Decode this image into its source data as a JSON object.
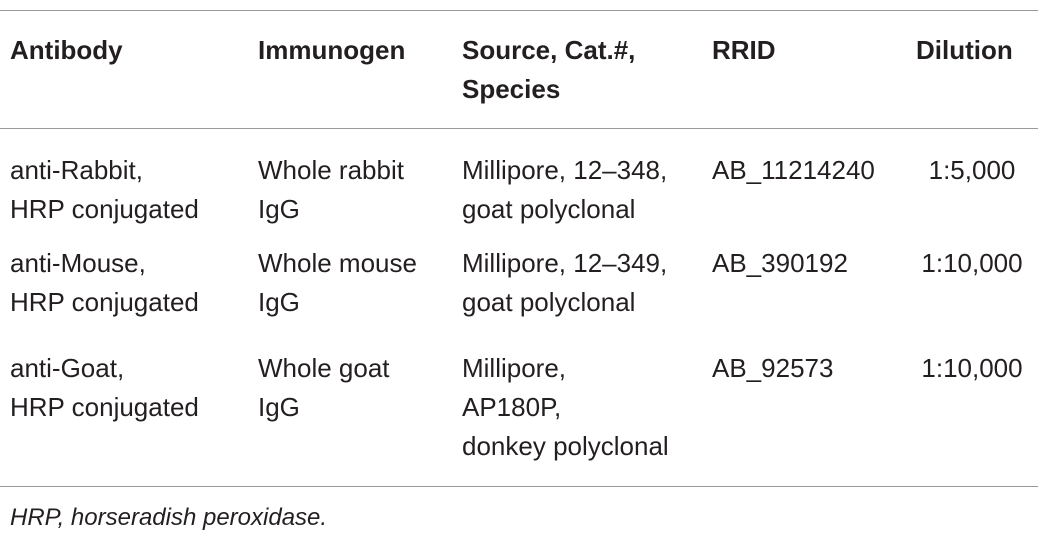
{
  "table": {
    "header": [
      [
        "Antibody"
      ],
      [
        "Immunogen"
      ],
      [
        "Source, Cat.#,",
        "Species"
      ],
      [
        "RRID"
      ],
      [
        "Dilution"
      ]
    ],
    "rows": [
      [
        [
          "anti-Rabbit,",
          "HRP conjugated"
        ],
        [
          "Whole rabbit",
          "IgG"
        ],
        [
          "Millipore, 12–348,",
          "goat polyclonal"
        ],
        [
          "AB_11214240"
        ],
        [
          "1:5,000"
        ]
      ],
      [
        [
          "anti-Mouse,",
          "HRP conjugated"
        ],
        [
          "Whole mouse",
          "IgG"
        ],
        [
          "Millipore, 12–349,",
          "goat polyclonal"
        ],
        [
          "AB_390192"
        ],
        [
          "1:10,000"
        ]
      ],
      [
        [
          "anti-Goat,",
          "HRP conjugated"
        ],
        [
          "Whole goat",
          "IgG"
        ],
        [
          "Millipore,",
          "AP180P,",
          "donkey polyclonal"
        ],
        [
          "AB_92573"
        ],
        [
          "1:10,000"
        ]
      ]
    ],
    "footnote": "HRP, horseradish peroxidase."
  }
}
